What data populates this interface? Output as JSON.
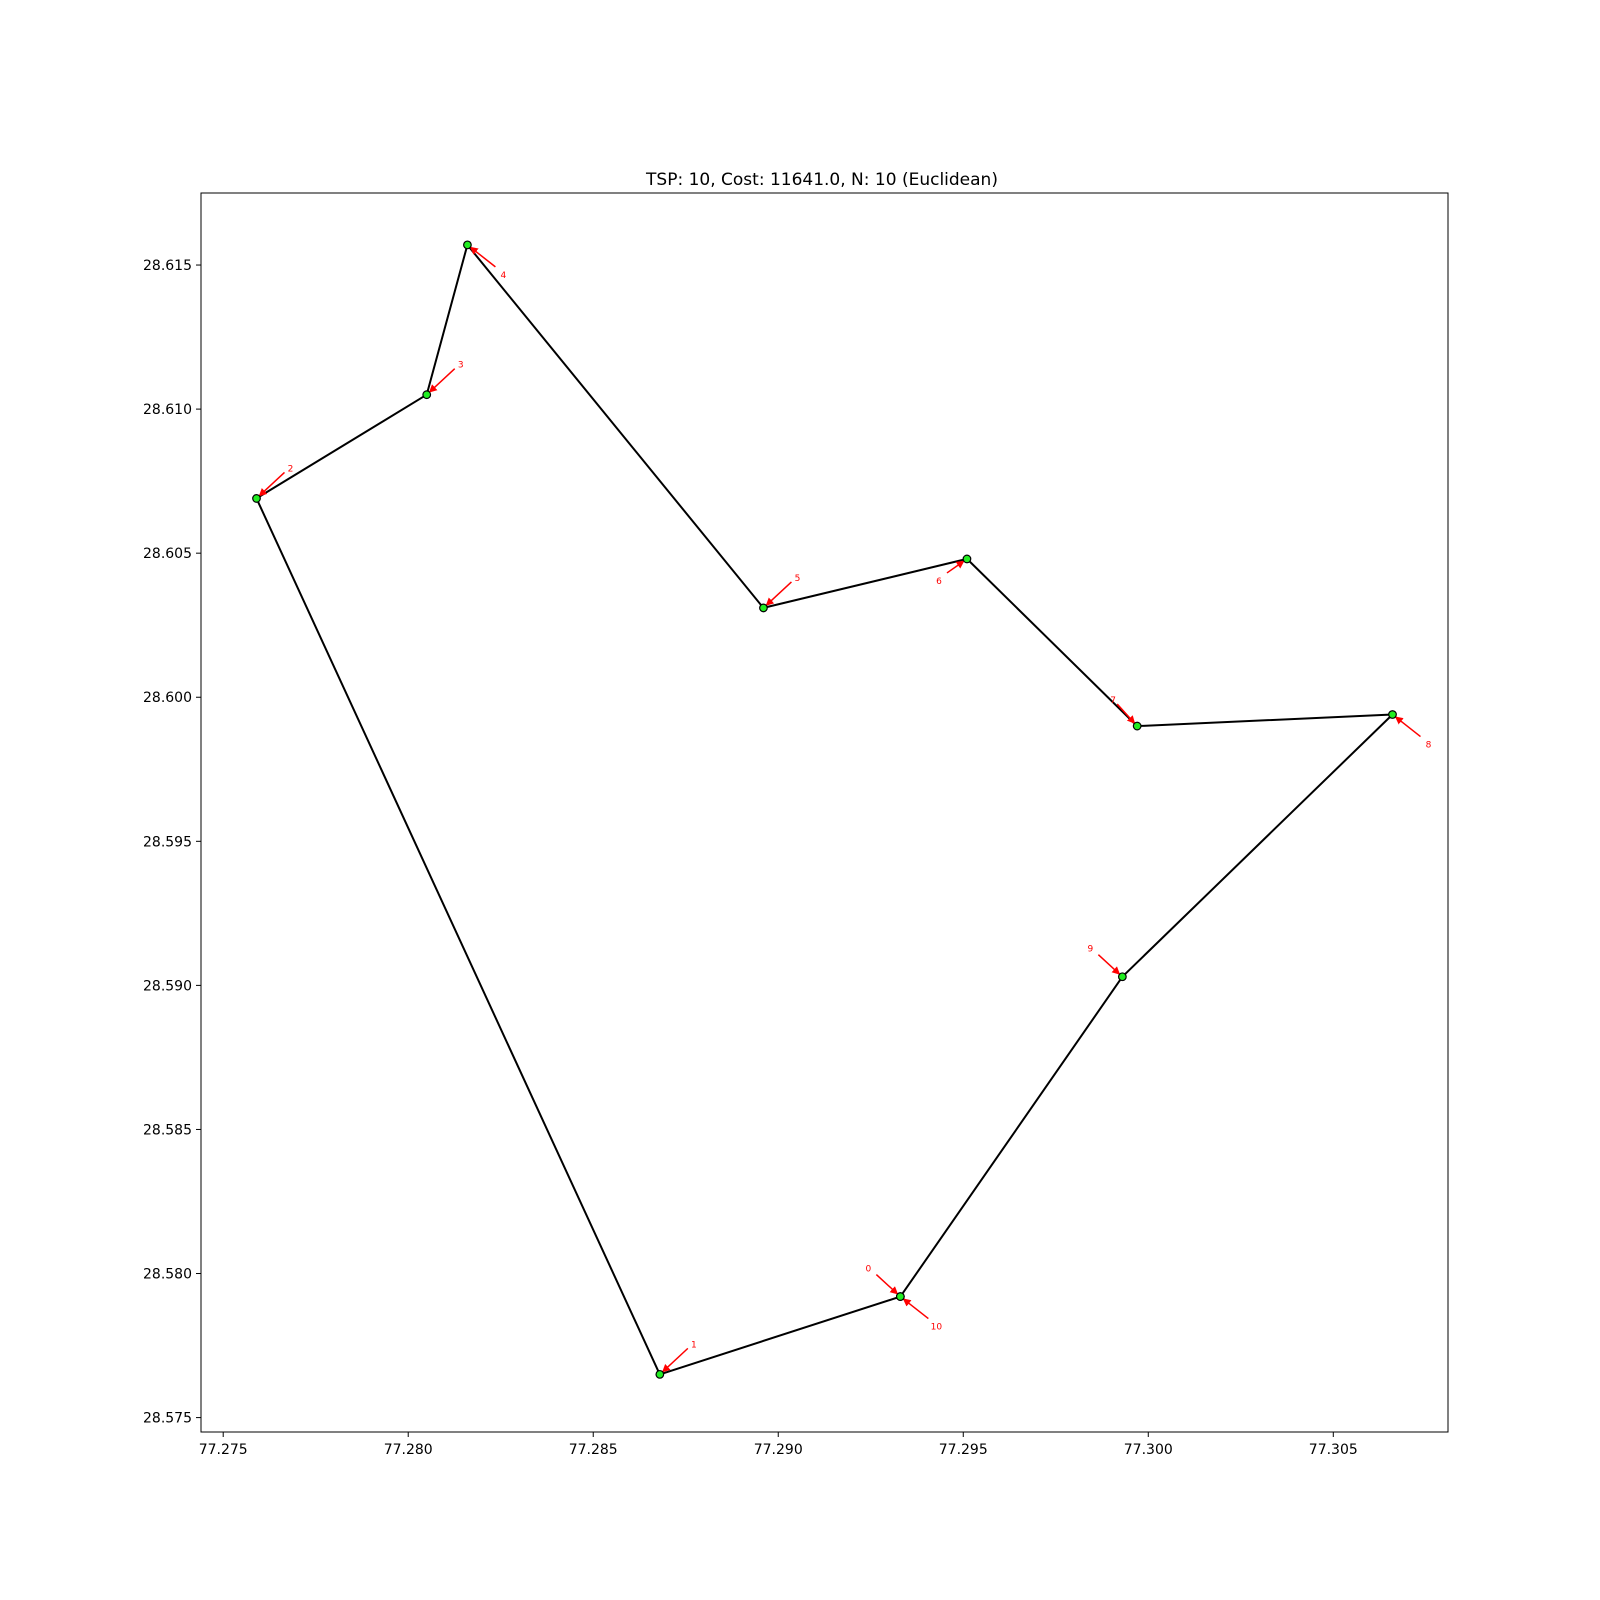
{
  "chart_data": {
    "type": "line",
    "title": "TSP: 10, Cost: 11641.0, N: 10 (Euclidean)",
    "xlabel": "",
    "ylabel": "",
    "xlim": [
      77.2744,
      77.3081
    ],
    "ylim": [
      28.5745,
      28.6175
    ],
    "xticks": [
      77.275,
      77.28,
      77.285,
      77.29,
      77.295,
      77.3,
      77.305
    ],
    "xtick_labels": [
      "77.275",
      "77.280",
      "77.285",
      "77.290",
      "77.295",
      "77.300",
      "77.305"
    ],
    "yticks": [
      28.575,
      28.58,
      28.585,
      28.59,
      28.595,
      28.6,
      28.605,
      28.61,
      28.615
    ],
    "ytick_labels": [
      "28.575",
      "28.580",
      "28.585",
      "28.590",
      "28.595",
      "28.600",
      "28.605",
      "28.610",
      "28.615"
    ],
    "grid": false,
    "colors": {
      "route": "#000000",
      "node_fill": "#22ee22",
      "node_edge": "#000000",
      "annotation": "#ff0000"
    },
    "points": [
      {
        "label": "0",
        "x": 77.2933,
        "y": 28.5792,
        "dir": "upper-left"
      },
      {
        "label": "1",
        "x": 77.2868,
        "y": 28.5765,
        "dir": "upper-right"
      },
      {
        "label": "2",
        "x": 77.2759,
        "y": 28.6069,
        "dir": "upper-right"
      },
      {
        "label": "3",
        "x": 77.2805,
        "y": 28.6105,
        "dir": "upper-right"
      },
      {
        "label": "4",
        "x": 77.2816,
        "y": 28.6157,
        "dir": "lower-right"
      },
      {
        "label": "5",
        "x": 77.2896,
        "y": 28.6031,
        "dir": "upper-right"
      },
      {
        "label": "6",
        "x": 77.2951,
        "y": 28.6048,
        "dir": "lower-left"
      },
      {
        "label": "7",
        "x": 77.2997,
        "y": 28.599,
        "dir": "upper-left-short"
      },
      {
        "label": "8",
        "x": 77.3066,
        "y": 28.5994,
        "dir": "lower-right"
      },
      {
        "label": "9",
        "x": 77.2993,
        "y": 28.5903,
        "dir": "upper-left"
      },
      {
        "label": "10",
        "x": 77.2933,
        "y": 28.5792,
        "dir": "lower-right"
      }
    ]
  }
}
